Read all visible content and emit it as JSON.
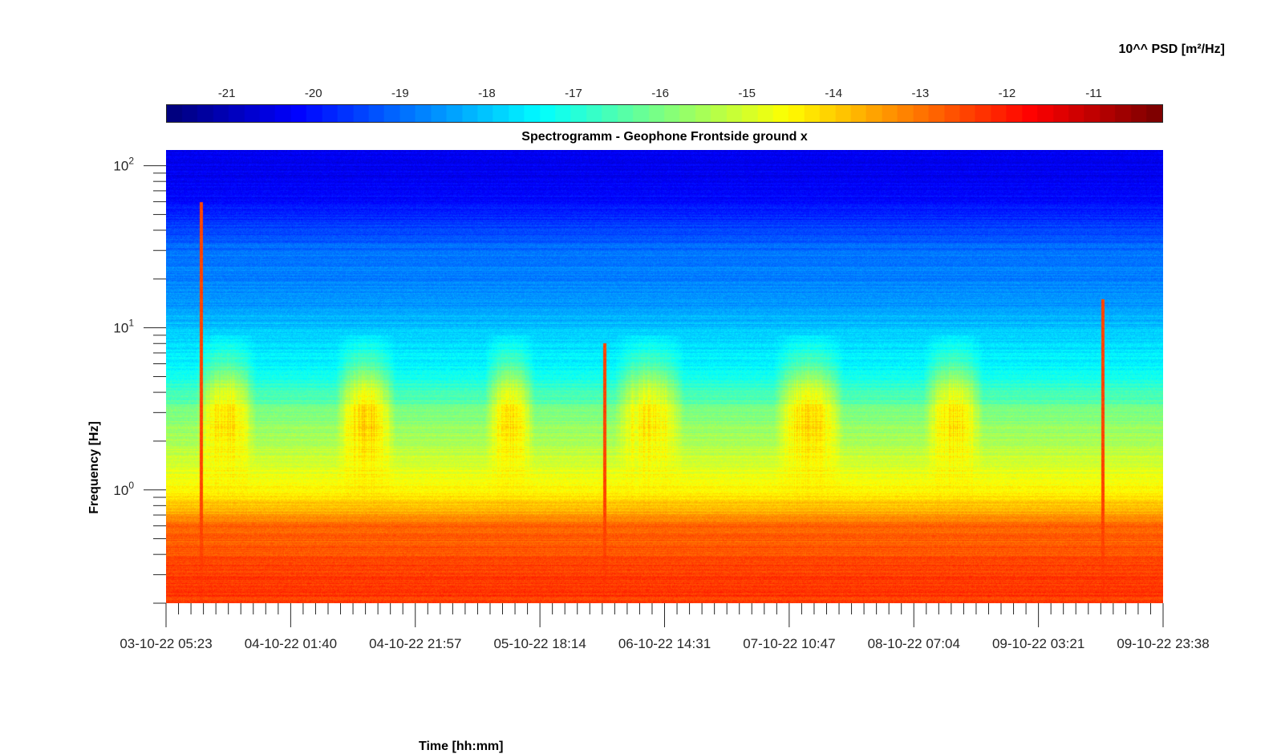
{
  "chart_data": {
    "type": "heatmap",
    "title": "Spectrogramm - Geophone Frontside ground x",
    "xlabel": "Time [hh:mm]",
    "ylabel": "Frequency [Hz]",
    "y_scale": "log",
    "y_ticks": [
      {
        "base": "10",
        "exp": "2",
        "value": 100
      },
      {
        "base": "10",
        "exp": "1",
        "value": 10
      },
      {
        "base": "10",
        "exp": "0",
        "value": 1
      }
    ],
    "ylim": [
      0.2,
      125
    ],
    "x_tick_labels": [
      "03-10-22 05:23",
      "04-10-22 01:40",
      "04-10-22 21:57",
      "05-10-22 18:14",
      "06-10-22 14:31",
      "07-10-22 10:47",
      "08-10-22 07:04",
      "09-10-22 03:21",
      "09-10-22 23:38"
    ],
    "colorbar": {
      "label": "10^^ PSD [m²/Hz]",
      "ticks": [
        "-21",
        "-20",
        "-19",
        "-18",
        "-17",
        "-16",
        "-15",
        "-14",
        "-13",
        "-12",
        "-11"
      ],
      "range": [
        -21.7,
        -10.2
      ],
      "colormap": "jet"
    },
    "spectral_levels": [
      {
        "freq_hz": 125,
        "log10_psd": -20.5
      },
      {
        "freq_hz": 80,
        "log10_psd": -20.4
      },
      {
        "freq_hz": 50,
        "log10_psd": -19.9
      },
      {
        "freq_hz": 30,
        "log10_psd": -19.0
      },
      {
        "freq_hz": 15,
        "log10_psd": -18.6
      },
      {
        "freq_hz": 8,
        "log10_psd": -17.8
      },
      {
        "freq_hz": 5,
        "log10_psd": -17.2
      },
      {
        "freq_hz": 3,
        "log10_psd": -16.0
      },
      {
        "freq_hz": 1.5,
        "log10_psd": -15.0
      },
      {
        "freq_hz": 0.9,
        "log10_psd": -14.3
      },
      {
        "freq_hz": 0.6,
        "log10_psd": -12.8
      },
      {
        "freq_hz": 0.3,
        "log10_psd": -12.3
      },
      {
        "freq_hz": 0.2,
        "log10_psd": -12.3
      }
    ],
    "activity_periods": [
      {
        "start_frac": 0.03,
        "end_frac": 0.09,
        "peak_log10_psd": -14.2
      },
      {
        "start_frac": 0.17,
        "end_frac": 0.23,
        "peak_log10_psd": -14.0
      },
      {
        "start_frac": 0.32,
        "end_frac": 0.37,
        "peak_log10_psd": -14.2
      },
      {
        "start_frac": 0.45,
        "end_frac": 0.52,
        "peak_log10_psd": -14.3
      },
      {
        "start_frac": 0.61,
        "end_frac": 0.68,
        "peak_log10_psd": -14.1
      },
      {
        "start_frac": 0.76,
        "end_frac": 0.82,
        "peak_log10_psd": -14.2
      }
    ],
    "transient_events": [
      {
        "time_frac": 0.035,
        "max_freq_hz": 60
      },
      {
        "time_frac": 0.44,
        "max_freq_hz": 8
      },
      {
        "time_frac": 0.94,
        "max_freq_hz": 15
      }
    ]
  }
}
